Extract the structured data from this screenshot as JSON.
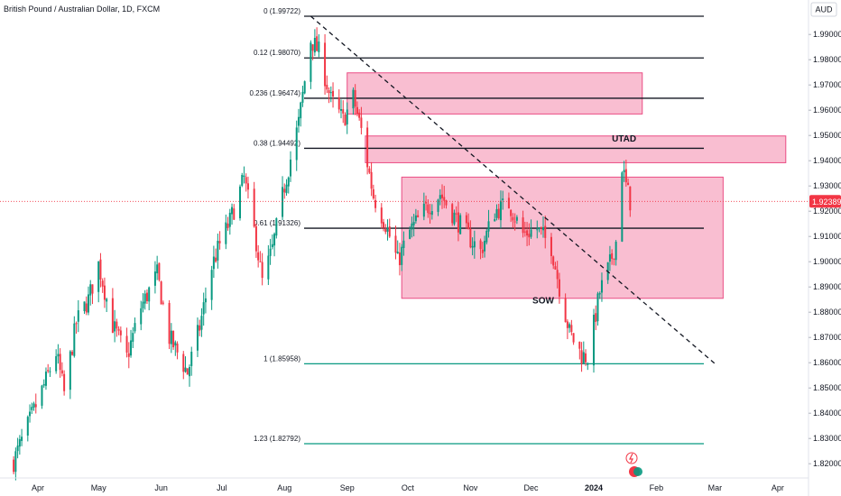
{
  "chart_data": {
    "type": "candlestick",
    "title": "British Pound / Australian Dollar, 1D, FXCM",
    "currency": "AUD",
    "last_price": "1.92389",
    "ylim": [
      1.8165,
      2.0015
    ],
    "y_ticks": [
      "1.99000",
      "1.98000",
      "1.97000",
      "1.96000",
      "1.95000",
      "1.94000",
      "1.93000",
      "1.92000",
      "1.91000",
      "1.90000",
      "1.89000",
      "1.88000",
      "1.87000",
      "1.86000",
      "1.85000",
      "1.84000",
      "1.83000",
      "1.82000"
    ],
    "x_ticks": [
      "Apr",
      "May",
      "Jun",
      "Jul",
      "Aug",
      "Sep",
      "Oct",
      "Nov",
      "Dec",
      "2024",
      "Feb",
      "Mar",
      "Apr"
    ],
    "colors": {
      "up": "#089981",
      "down": "#f23645",
      "zone_fill": "#f7a8c2",
      "zone_stroke": "#ea4d84",
      "fib_line": "#131722",
      "fib_ext_line": "#089981"
    },
    "fib_levels": [
      {
        "label": "0 (1.99722)",
        "value": 1.99722
      },
      {
        "label": "0.12 (1.98070)",
        "value": 1.9807
      },
      {
        "label": "0.236 (1.96474)",
        "value": 1.96474
      },
      {
        "label": "0.38 (1.94492)",
        "value": 1.94492
      },
      {
        "label": "0.61 (1.91326)",
        "value": 1.91326
      },
      {
        "label": "1 (1.85958)",
        "value": 1.85958
      },
      {
        "label": "1.23 (1.82792)",
        "value": 1.82792
      }
    ],
    "zones": [
      {
        "x_start": "2023-09-01",
        "x_end": "2024-01-25",
        "y_top": 1.9748,
        "y_bottom": 1.9585
      },
      {
        "x_start": "2023-09-10",
        "x_end": "2024-04-05",
        "y_top": 1.9498,
        "y_bottom": 1.9392
      },
      {
        "x_start": "2023-09-28",
        "x_end": "2024-03-05",
        "y_top": 1.9335,
        "y_bottom": 1.8855
      }
    ],
    "trendline": {
      "start": {
        "x": "2023-08-14",
        "y": 1.9972
      },
      "end": {
        "x": "2024-03-01",
        "y": 1.8596
      }
    },
    "annotations": [
      {
        "text": "UTAD",
        "x": "2024-01-16",
        "y": 1.9475
      },
      {
        "text": "SOW",
        "x": "2023-12-07",
        "y": 1.8835
      }
    ],
    "anchors": [
      {
        "date": "2023-03-20",
        "close": 1.821
      },
      {
        "date": "2023-04-05",
        "close": 1.853
      },
      {
        "date": "2023-04-10",
        "close": 1.864
      },
      {
        "date": "2023-04-14",
        "close": 1.848
      },
      {
        "date": "2023-04-20",
        "close": 1.876
      },
      {
        "date": "2023-04-26",
        "close": 1.885
      },
      {
        "date": "2023-05-01",
        "close": 1.899
      },
      {
        "date": "2023-05-08",
        "close": 1.875
      },
      {
        "date": "2023-05-15",
        "close": 1.862
      },
      {
        "date": "2023-05-22",
        "close": 1.882
      },
      {
        "date": "2023-05-30",
        "close": 1.895
      },
      {
        "date": "2023-06-05",
        "close": 1.87
      },
      {
        "date": "2023-06-09",
        "close": 1.864
      },
      {
        "date": "2023-06-14",
        "close": 1.856
      },
      {
        "date": "2023-06-20",
        "close": 1.874
      },
      {
        "date": "2023-06-26",
        "close": 1.898
      },
      {
        "date": "2023-06-30",
        "close": 1.907
      },
      {
        "date": "2023-07-05",
        "close": 1.916
      },
      {
        "date": "2023-07-12",
        "close": 1.933
      },
      {
        "date": "2023-07-18",
        "close": 1.908
      },
      {
        "date": "2023-07-21",
        "close": 1.892
      },
      {
        "date": "2023-07-26",
        "close": 1.905
      },
      {
        "date": "2023-08-01",
        "close": 1.93
      },
      {
        "date": "2023-08-08",
        "close": 1.955
      },
      {
        "date": "2023-08-14",
        "close": 1.988
      },
      {
        "date": "2023-08-18",
        "close": 1.983
      },
      {
        "date": "2023-08-24",
        "close": 1.964
      },
      {
        "date": "2023-08-30",
        "close": 1.956
      },
      {
        "date": "2023-09-04",
        "close": 1.965
      },
      {
        "date": "2023-09-08",
        "close": 1.952
      },
      {
        "date": "2023-09-14",
        "close": 1.926
      },
      {
        "date": "2023-09-20",
        "close": 1.915
      },
      {
        "date": "2023-09-26",
        "close": 1.9
      },
      {
        "date": "2023-10-02",
        "close": 1.912
      },
      {
        "date": "2023-10-10",
        "close": 1.921
      },
      {
        "date": "2023-10-17",
        "close": 1.927
      },
      {
        "date": "2023-10-24",
        "close": 1.918
      },
      {
        "date": "2023-10-31",
        "close": 1.91
      },
      {
        "date": "2023-11-06",
        "close": 1.904
      },
      {
        "date": "2023-11-13",
        "close": 1.92
      },
      {
        "date": "2023-11-20",
        "close": 1.923
      },
      {
        "date": "2023-11-27",
        "close": 1.911
      },
      {
        "date": "2023-12-04",
        "close": 1.913
      },
      {
        "date": "2023-12-11",
        "close": 1.906
      },
      {
        "date": "2023-12-15",
        "close": 1.89
      },
      {
        "date": "2023-12-20",
        "close": 1.872
      },
      {
        "date": "2023-12-26",
        "close": 1.863
      },
      {
        "date": "2023-12-29",
        "close": 1.862
      },
      {
        "date": "2024-01-04",
        "close": 1.888
      },
      {
        "date": "2024-01-09",
        "close": 1.899
      },
      {
        "date": "2024-01-12",
        "close": 1.908
      },
      {
        "date": "2024-01-15",
        "close": 1.938
      },
      {
        "date": "2024-01-17",
        "close": 1.93
      },
      {
        "date": "2024-01-19",
        "close": 1.9239
      }
    ]
  }
}
